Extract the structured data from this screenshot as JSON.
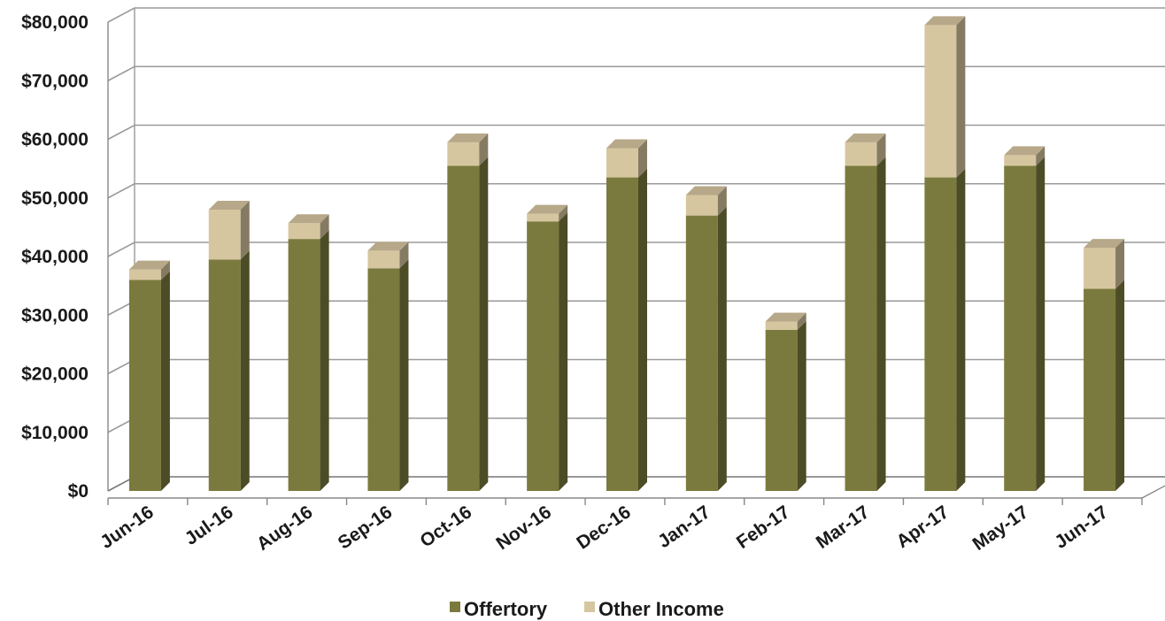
{
  "chart_data": {
    "type": "bar",
    "stacked": true,
    "three_d": true,
    "categories": [
      "Jun-16",
      "Jul-16",
      "Aug-16",
      "Sep-16",
      "Oct-16",
      "Nov-16",
      "Dec-16",
      "Jan-17",
      "Feb-17",
      "Mar-17",
      "Apr-17",
      "May-17",
      "Jun-17"
    ],
    "series": [
      {
        "name": "Offertory",
        "color": "#7b7a3e",
        "values": [
          36000,
          39500,
          43000,
          38000,
          55500,
          46000,
          53500,
          47000,
          27500,
          55500,
          53500,
          55500,
          34500
        ]
      },
      {
        "name": "Other Income",
        "color": "#d6c6a0",
        "values": [
          1800,
          8500,
          2700,
          3000,
          4000,
          1300,
          5000,
          3500,
          1400,
          4000,
          26000,
          1800,
          7000
        ]
      }
    ],
    "yticks": [
      "$0",
      "$10,000",
      "$20,000",
      "$30,000",
      "$40,000",
      "$50,000",
      "$60,000",
      "$70,000",
      "$80,000"
    ],
    "ylim": [
      0,
      80000
    ],
    "grid": true,
    "legend_position": "bottom"
  }
}
